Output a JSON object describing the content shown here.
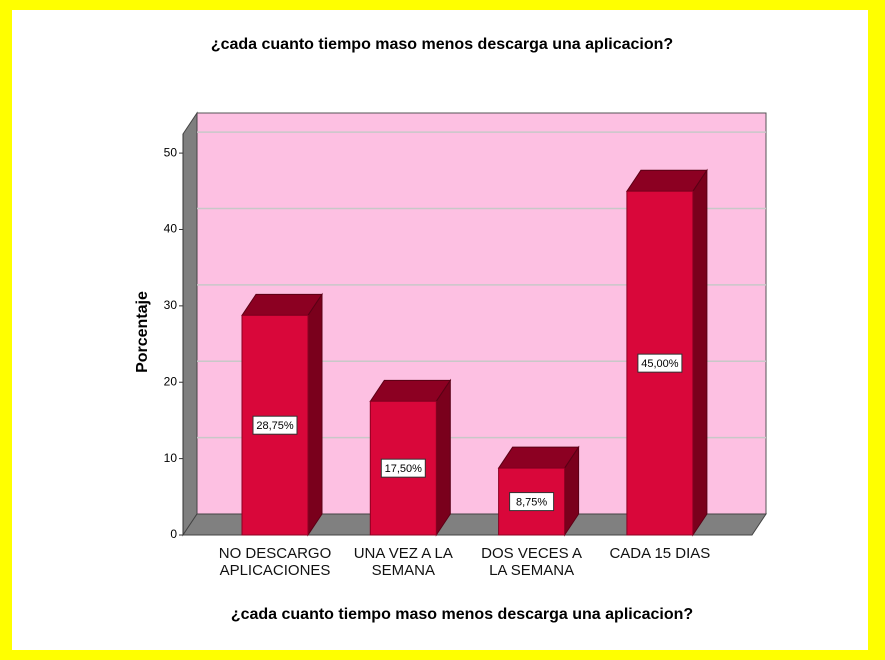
{
  "chart_data": {
    "type": "bar3d",
    "title": "¿cada cuanto tiempo maso menos descarga una aplicacion?",
    "xlabel": "¿cada cuanto tiempo maso menos descarga una aplicacion?",
    "ylabel": "Porcentaje",
    "categories": [
      "NO DESCARGO\nAPLICACIONES",
      "UNA VEZ A LA\nSEMANA",
      "DOS VECES A\nLA SEMANA",
      "CADA 15 DIAS"
    ],
    "values": [
      28.75,
      17.5,
      8.75,
      45
    ],
    "value_labels": [
      "28,75%",
      "17,50%",
      "8,75%",
      "45,00%"
    ],
    "color": "#d9073a",
    "ylim": [
      0,
      52.5
    ],
    "yticks": [
      0,
      10,
      20,
      30,
      40,
      50
    ],
    "grid": true
  }
}
